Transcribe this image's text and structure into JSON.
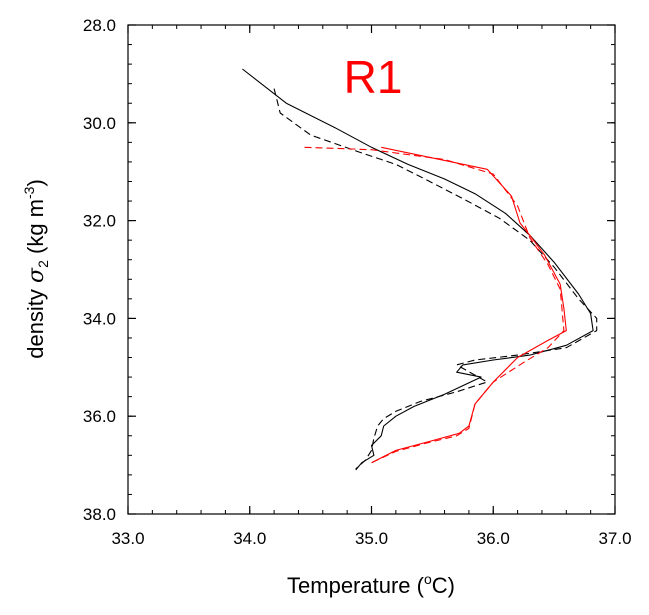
{
  "chart_data": {
    "type": "line",
    "panel_label": "R1",
    "panel_label_color": "#ff0000",
    "xlabel_prefix": "Temperature (",
    "xlabel_sup": "o",
    "xlabel_suffix": "C)",
    "ylabel_prefix": "density ",
    "ylabel_sigma": "σ",
    "ylabel_sub": "2",
    "ylabel_units_prefix": " (kg m",
    "ylabel_sup": "-3",
    "ylabel_units_suffix": ")",
    "xlim": [
      33.0,
      37.0
    ],
    "ylim": [
      28.0,
      38.0
    ],
    "y_inverted": true,
    "x_major_ticks": [
      33.0,
      34.0,
      35.0,
      36.0,
      37.0
    ],
    "x_tick_labels": [
      "33.0",
      "34.0",
      "35.0",
      "36.0",
      "37.0"
    ],
    "x_minor_step": 0.2,
    "y_major_ticks": [
      28.0,
      30.0,
      32.0,
      34.0,
      36.0,
      38.0
    ],
    "y_tick_labels": [
      "28.0",
      "30.0",
      "32.0",
      "34.0",
      "36.0",
      "38.0"
    ],
    "y_minor_step": 0.4,
    "grid": false,
    "series": [
      {
        "color": "#000000",
        "dash": "solid",
        "x": [
          33.94,
          34.3,
          34.7,
          35.0,
          35.3,
          35.6,
          35.85,
          36.1,
          36.3,
          36.5,
          36.7,
          36.8,
          36.82,
          36.6,
          36.3,
          36.0,
          35.75,
          35.7,
          35.9,
          35.6,
          35.35,
          35.2,
          35.1,
          35.08,
          35.0,
          35.02,
          34.92,
          34.87
        ],
        "y": [
          28.9,
          29.6,
          30.1,
          30.5,
          30.85,
          31.15,
          31.45,
          31.85,
          32.3,
          32.85,
          33.5,
          33.9,
          34.25,
          34.55,
          34.75,
          34.85,
          34.95,
          35.1,
          35.2,
          35.55,
          35.8,
          36.0,
          36.2,
          36.4,
          36.6,
          36.8,
          36.95,
          37.1
        ]
      },
      {
        "color": "#000000",
        "dash": "dashed",
        "x": [
          34.2,
          34.25,
          34.5,
          34.9,
          35.2,
          35.4,
          35.75,
          36.05,
          36.3,
          36.5,
          36.7,
          36.85,
          36.85,
          36.6,
          36.2,
          35.85,
          35.7,
          35.95,
          35.7,
          35.4,
          35.2,
          35.1,
          35.05,
          35.02,
          35.0,
          34.95,
          34.87
        ],
        "y": [
          29.3,
          29.8,
          30.25,
          30.6,
          30.85,
          31.1,
          31.55,
          31.95,
          32.4,
          32.95,
          33.6,
          34.0,
          34.25,
          34.6,
          34.75,
          34.85,
          34.95,
          35.3,
          35.5,
          35.7,
          35.9,
          36.05,
          36.2,
          36.45,
          36.7,
          36.9,
          37.08
        ]
      },
      {
        "color": "#ff0000",
        "dash": "solid",
        "x": [
          35.08,
          35.95,
          36.15,
          36.22,
          36.3,
          36.42,
          36.55,
          36.58,
          36.6,
          36.45,
          36.2,
          36.0,
          35.85,
          35.8,
          35.72,
          35.5,
          35.2,
          35.0
        ],
        "y": [
          30.5,
          30.95,
          31.5,
          32.05,
          32.3,
          32.7,
          33.3,
          33.8,
          34.25,
          34.45,
          34.8,
          35.3,
          35.75,
          36.2,
          36.35,
          36.5,
          36.7,
          36.95
        ]
      },
      {
        "color": "#ff0000",
        "dash": "dashed",
        "x": [
          34.45,
          35.0,
          35.6,
          36.0,
          36.2,
          36.3,
          36.45,
          36.55,
          36.58,
          36.45,
          36.25,
          36.0,
          35.85,
          35.8,
          35.7,
          35.45,
          35.2,
          35.0
        ],
        "y": [
          30.5,
          30.55,
          30.75,
          31.05,
          31.7,
          32.35,
          32.9,
          33.4,
          34.25,
          34.6,
          34.9,
          35.3,
          35.75,
          36.25,
          36.4,
          36.55,
          36.72,
          36.95
        ]
      }
    ]
  }
}
